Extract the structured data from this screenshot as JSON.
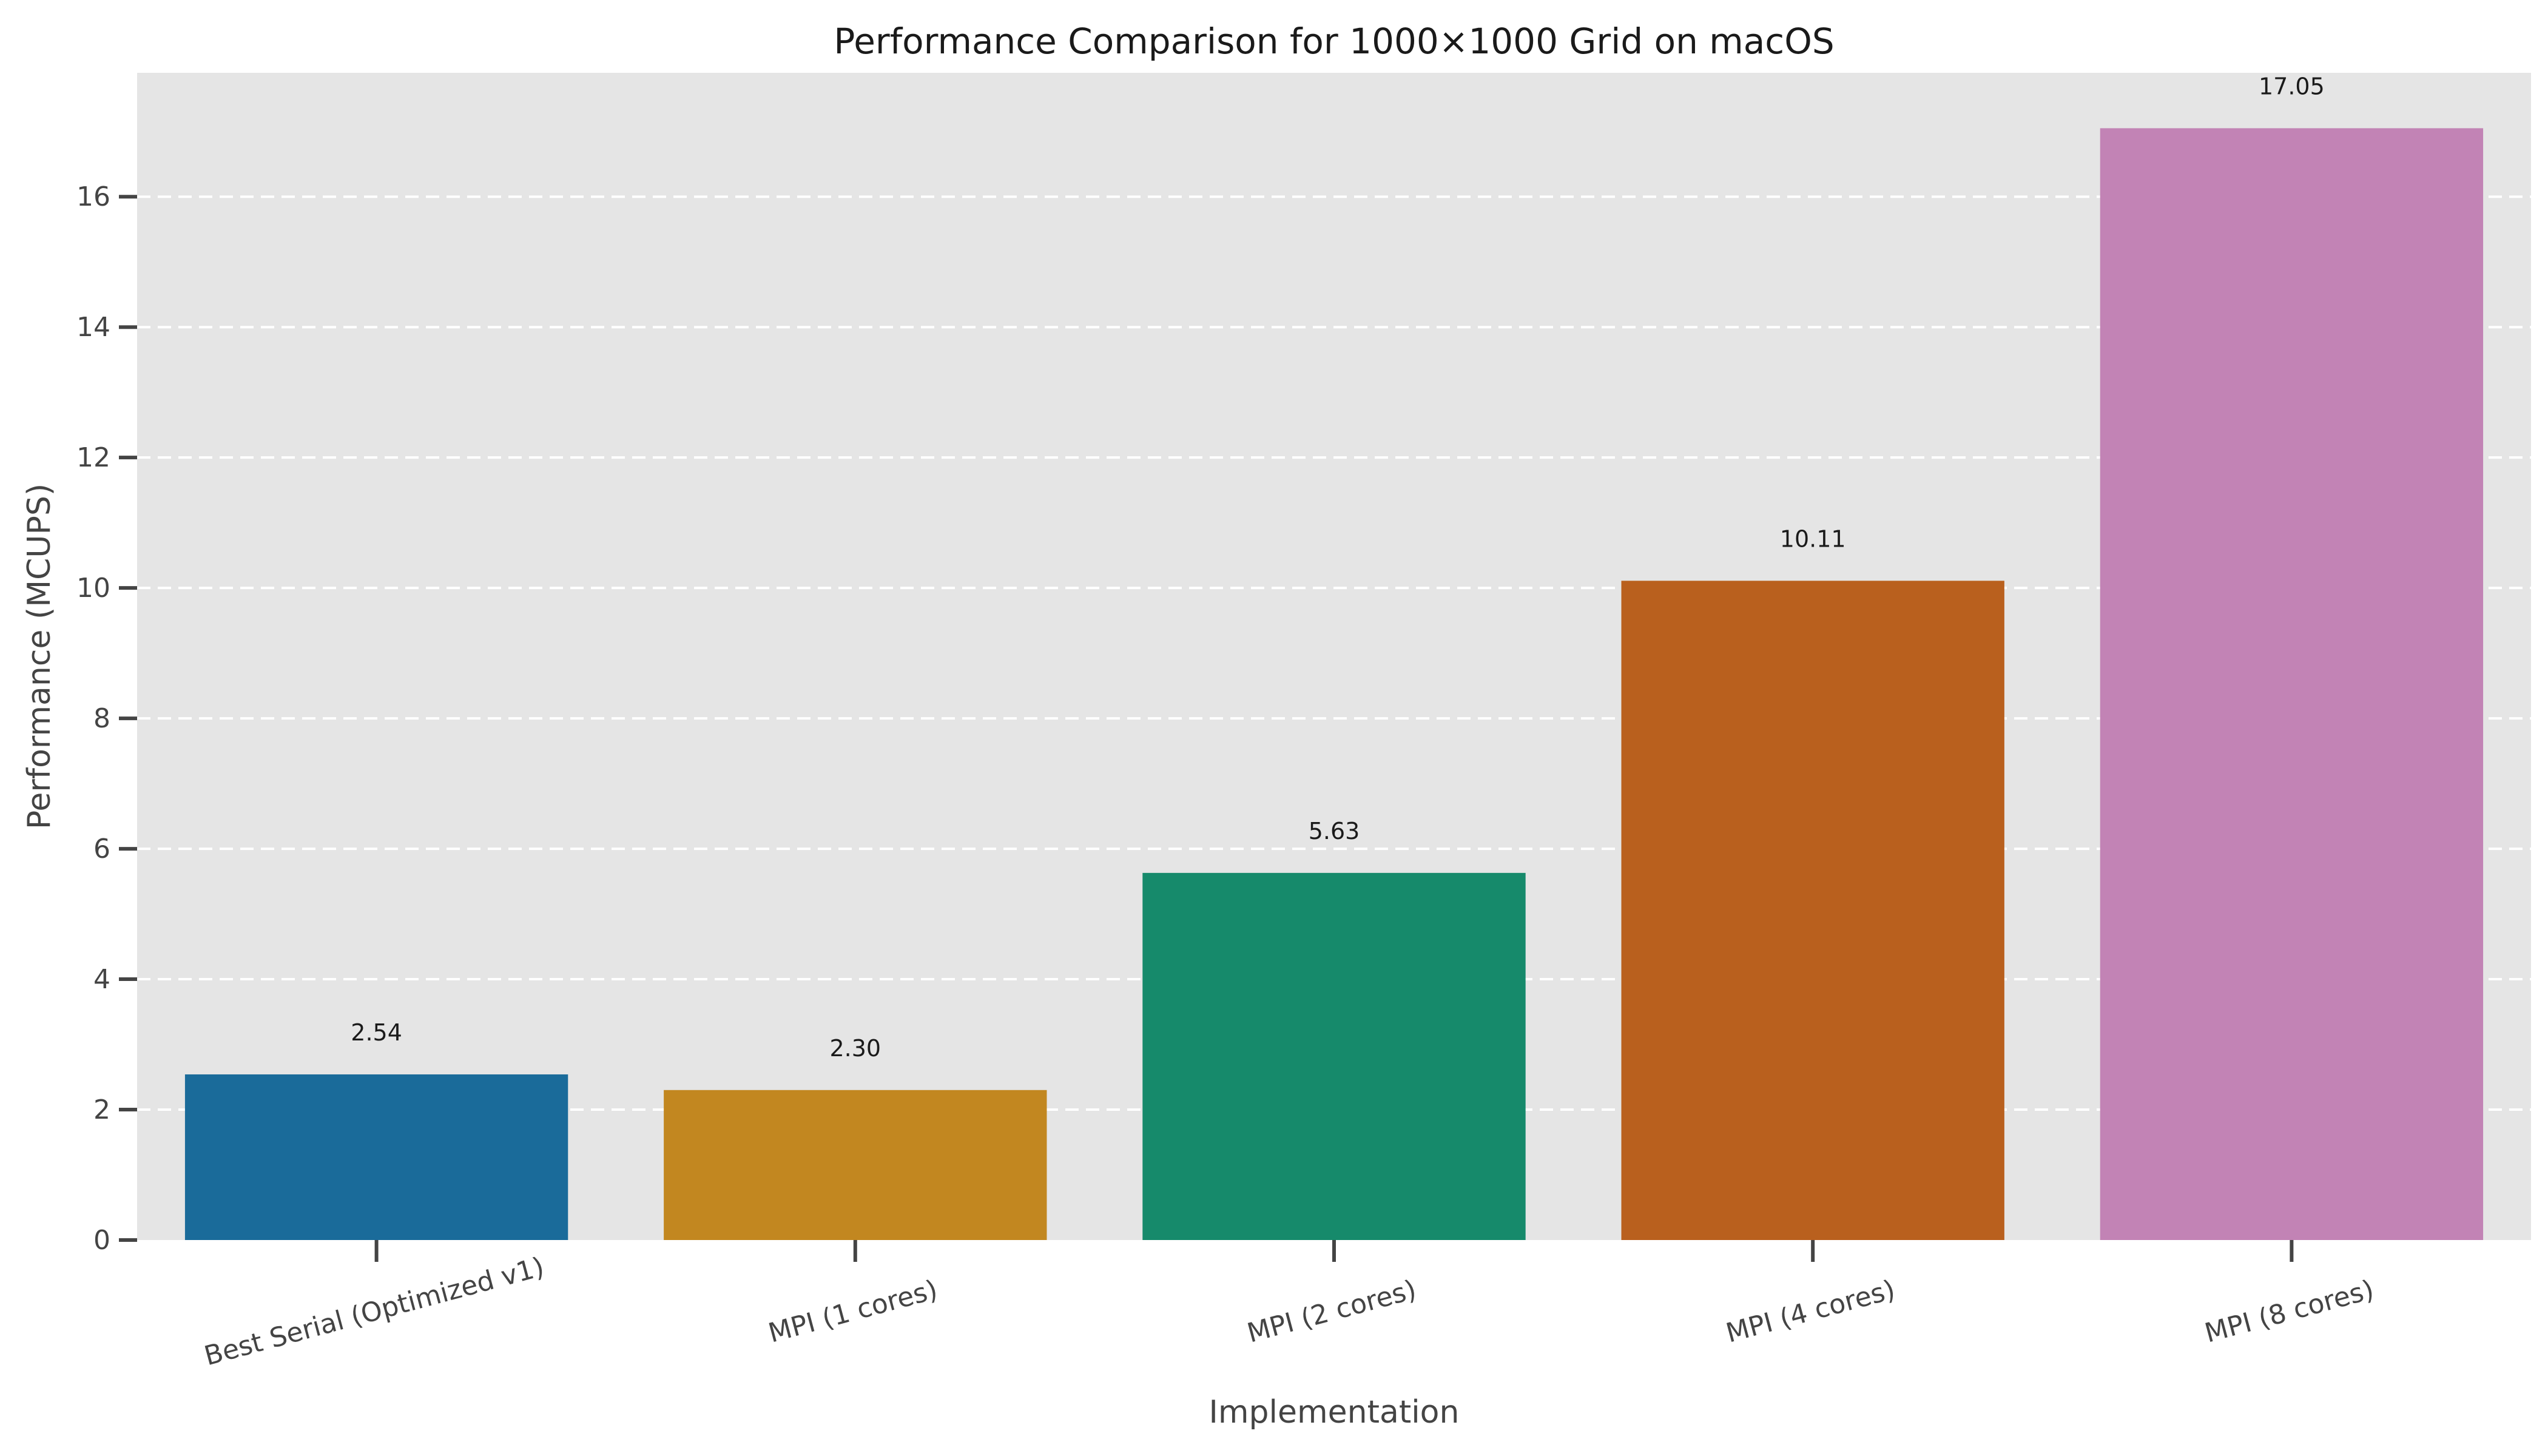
{
  "chart_data": {
    "type": "bar",
    "title": "Performance Comparison for 1000×1000 Grid on macOS",
    "xlabel": "Implementation",
    "ylabel": "Performance (MCUPS)",
    "categories": [
      "Best Serial (Optimized v1)",
      "MPI (1 cores)",
      "MPI (2 cores)",
      "MPI (4 cores)",
      "MPI (8 cores)"
    ],
    "values": [
      2.54,
      2.3,
      5.63,
      10.11,
      17.05
    ],
    "value_labels": [
      "2.54",
      "2.30",
      "5.63",
      "10.11",
      "17.05"
    ],
    "colors": [
      "#1a6b9a",
      "#c28720",
      "#168a6b",
      "#b9601e",
      "#c283b5"
    ],
    "ylim": [
      0,
      17.9
    ],
    "yticks": [
      0,
      2,
      4,
      6,
      8,
      10,
      12,
      14,
      16
    ],
    "grid": true,
    "background": "#e5e5e5"
  }
}
